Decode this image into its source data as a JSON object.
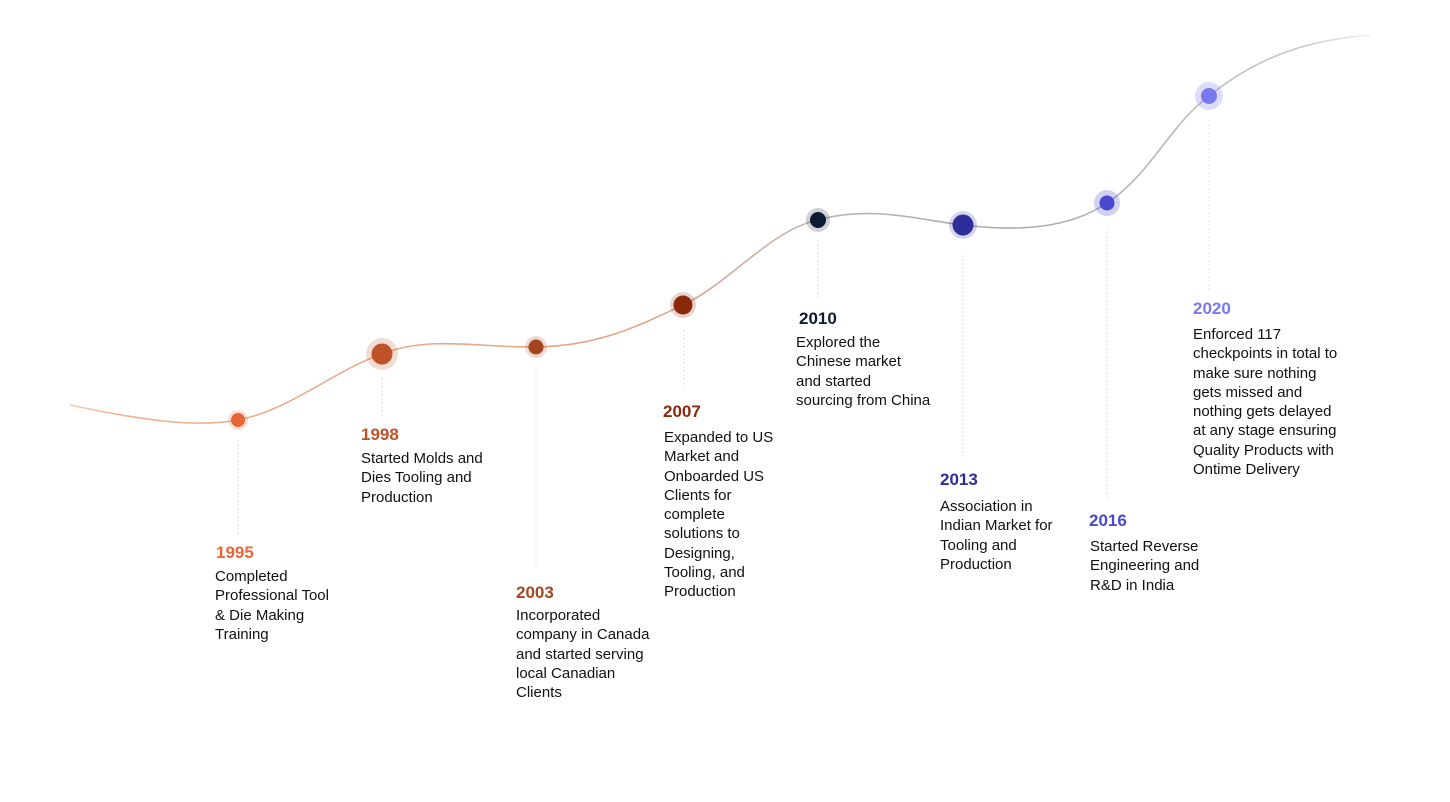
{
  "milestones": [
    {
      "year": "1995",
      "description": "Completed\nProfessional Tool\n& Die Making\nTraining",
      "color": "#e8663a"
    },
    {
      "year": "1998",
      "description": "Started Molds and\nDies Tooling and\nProduction",
      "color": "#c0522a"
    },
    {
      "year": "2003",
      "description": "Incorporated\ncompany in Canada\nand started serving\nlocal Canadian\nClients",
      "color": "#a3461f"
    },
    {
      "year": "2007",
      "description": "Expanded to US\nMarket and\nOnboarded US\nClients for\ncomplete\nsolutions to\nDesigning,\nTooling, and\nProduction",
      "color": "#8b2a0a"
    },
    {
      "year": "2010",
      "description": "Explored the\nChinese market\nand started\nsourcing from China",
      "color": "#0d1a33"
    },
    {
      "year": "2013",
      "description": "Association in\nIndian Market for\nTooling and\nProduction",
      "color": "#2e2e9a"
    },
    {
      "year": "2016",
      "description": "Started Reverse\nEngineering and\nR&D in India",
      "color": "#4747d1"
    },
    {
      "year": "2020",
      "description": "Enforced 117\ncheckpoints in total to\nmake sure nothing\ngets missed and\nnothing gets delayed\nat any stage ensuring\nQuality Products with\nOntime Delivery",
      "color": "#7878f0"
    }
  ]
}
